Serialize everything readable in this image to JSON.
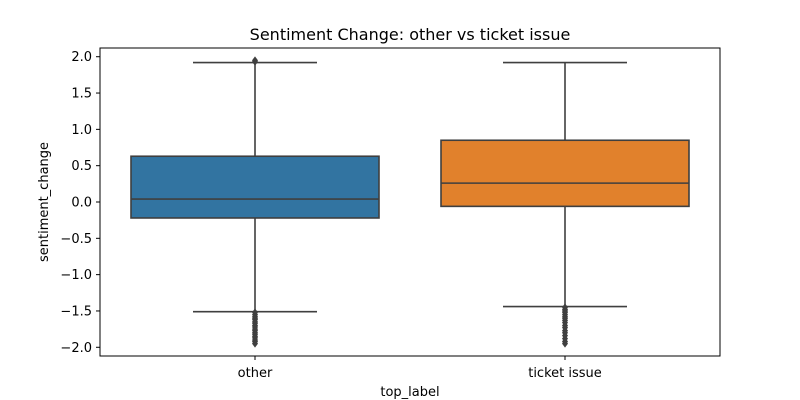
{
  "chart_data": {
    "type": "box",
    "title": "Sentiment Change: other vs ticket issue",
    "xlabel": "top_label",
    "ylabel": "sentiment_change",
    "ylim": [
      -2.12,
      2.12
    ],
    "yticks": [
      -2.0,
      -1.5,
      -1.0,
      -0.5,
      0.0,
      0.5,
      1.0,
      1.5,
      2.0
    ],
    "ytick_labels": [
      "−2.0",
      "−1.5",
      "−1.0",
      "−0.5",
      "0.0",
      "0.5",
      "1.0",
      "1.5",
      "2.0"
    ],
    "categories": [
      "other",
      "ticket issue"
    ],
    "boxes": [
      {
        "name": "other",
        "color": "#3274a1",
        "whisker_low": -1.51,
        "q1": -0.22,
        "median": 0.04,
        "q3": 0.63,
        "whisker_high": 1.92,
        "outliers_high": [
          1.93,
          1.95
        ],
        "outliers_low": [
          -1.52,
          -1.55,
          -1.58,
          -1.6,
          -1.62,
          -1.65,
          -1.67,
          -1.7,
          -1.72,
          -1.75,
          -1.77,
          -1.8,
          -1.82,
          -1.85,
          -1.87,
          -1.9,
          -1.92,
          -1.95
        ]
      },
      {
        "name": "ticket issue",
        "color": "#e1812c",
        "whisker_low": -1.44,
        "q1": -0.06,
        "median": 0.26,
        "q3": 0.85,
        "whisker_high": 1.92,
        "outliers_high": [],
        "outliers_low": [
          -1.45,
          -1.48,
          -1.5,
          -1.52,
          -1.55,
          -1.58,
          -1.6,
          -1.63,
          -1.66,
          -1.7,
          -1.73,
          -1.77,
          -1.8,
          -1.84,
          -1.88,
          -1.92,
          -1.95
        ]
      }
    ],
    "grid": false,
    "legend": "none"
  }
}
